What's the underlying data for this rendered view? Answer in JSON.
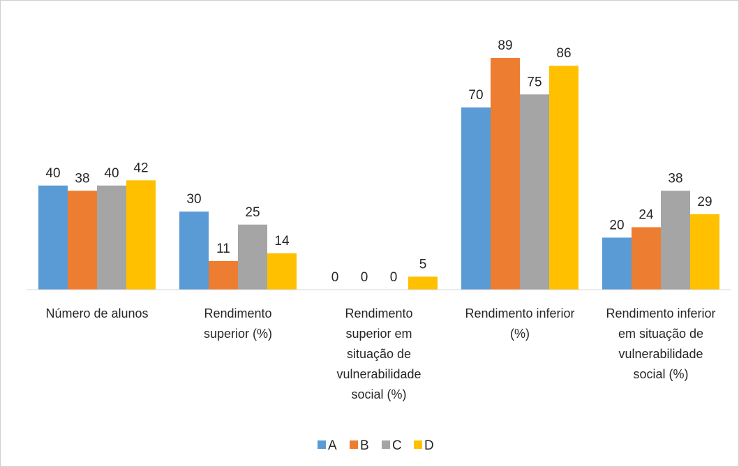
{
  "chart_data": {
    "type": "bar",
    "categories": [
      "Número de alunos",
      "Rendimento superior (%)",
      "Rendimento superior em situação de vulnerabilidade social (%)",
      "Rendimento inferior (%)",
      "Rendimento inferior em situação de vulnerabilidade social (%)"
    ],
    "series": [
      {
        "name": "A",
        "color": "#5b9bd5",
        "values": [
          40,
          30,
          0,
          70,
          20
        ]
      },
      {
        "name": "B",
        "color": "#ed7d31",
        "values": [
          38,
          11,
          0,
          89,
          24
        ]
      },
      {
        "name": "C",
        "color": "#a5a5a5",
        "values": [
          40,
          25,
          0,
          75,
          38
        ]
      },
      {
        "name": "D",
        "color": "#ffc000",
        "values": [
          42,
          14,
          5,
          86,
          29
        ]
      }
    ],
    "ylim": [
      0,
      100
    ],
    "legend": "bottom"
  }
}
